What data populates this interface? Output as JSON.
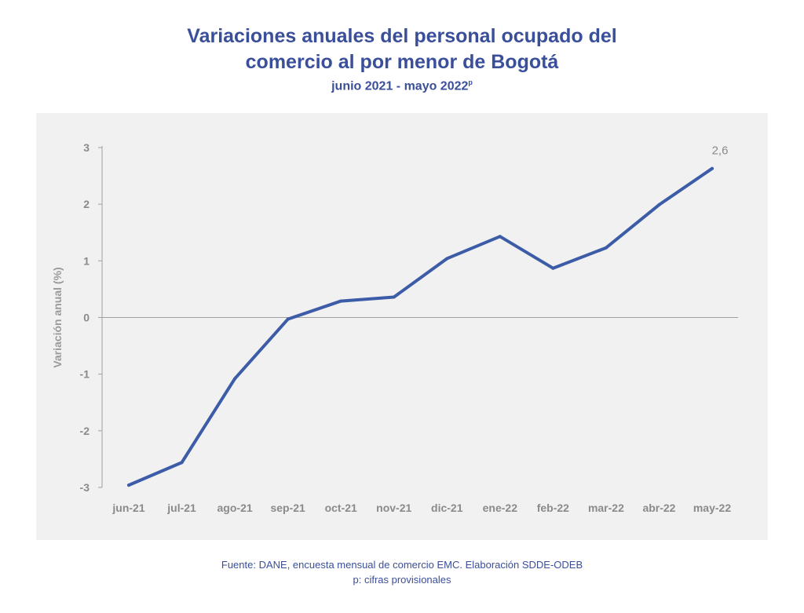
{
  "title_lines": [
    "Variaciones anuales del personal ocupado del",
    "comercio al por menor de Bogotá"
  ],
  "subtitle": "junio 2021 - mayo 2022",
  "subtitle_sup": "p",
  "footer": {
    "source": "Fuente: DANE, encuesta mensual de comercio EMC. Elaboración SDDE-ODEB",
    "note": "p: cifras provisionales"
  },
  "colors": {
    "title": "#3a4f9a",
    "line": "#3d5ca8",
    "panel_bg": "#f1f1f1",
    "axis": "#a0a0a0"
  },
  "chart_data": {
    "type": "line",
    "title": "Variaciones anuales del personal ocupado del comercio al por menor de Bogotá",
    "subtitle": "junio 2021 - mayo 2022",
    "xlabel": "",
    "ylabel": "Variación anual (%)",
    "categories": [
      "jun-21",
      "jul-21",
      "ago-21",
      "sep-21",
      "oct-21",
      "nov-21",
      "dic-21",
      "ene-22",
      "feb-22",
      "mar-22",
      "abr-22",
      "may-22"
    ],
    "series": [
      {
        "values": [
          -2.96,
          -2.56,
          -1.08,
          -0.03,
          0.29,
          0.36,
          1.04,
          1.43,
          0.87,
          1.23,
          1.99,
          2.63
        ]
      }
    ],
    "ylim": [
      -3,
      3
    ],
    "yticks": [
      "3",
      "2",
      "1",
      "0",
      "-1",
      "-2",
      "-3"
    ],
    "ytick_values": [
      3,
      2,
      1,
      0,
      -1,
      -2,
      -3
    ],
    "data_labels": [
      {
        "index": 11,
        "text": "2,6"
      }
    ],
    "grid": false,
    "zero_line": true,
    "legend": "none"
  }
}
